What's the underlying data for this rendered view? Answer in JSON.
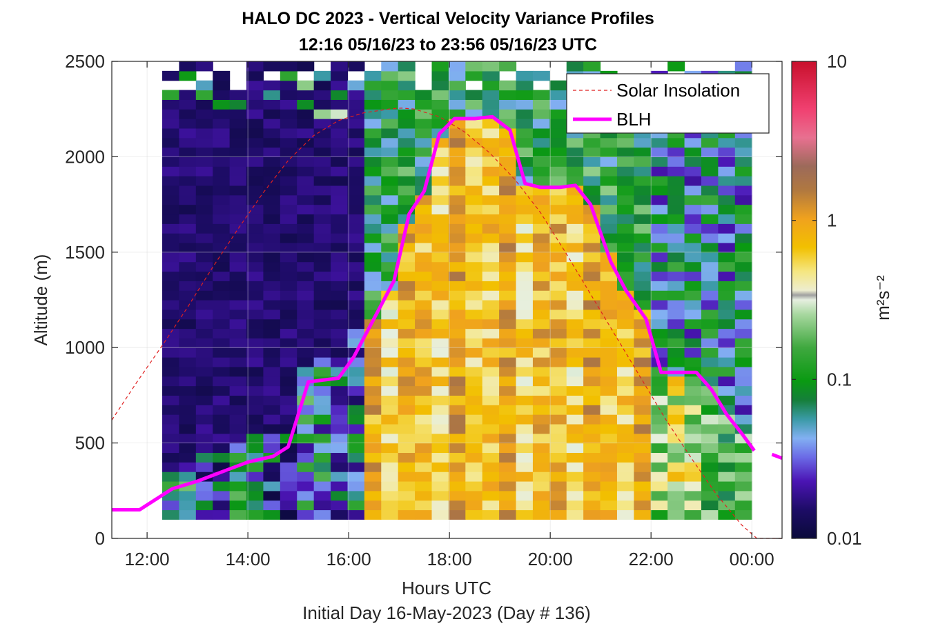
{
  "chart_data": {
    "type": "heatmap",
    "title": "HALO DC 2023 - Vertical Velocity Variance Profiles",
    "subtitle": "12:16 05/16/23 to 23:56 05/16/23  UTC",
    "xlabel": "Hours UTC",
    "ylabel": "Altitude (m)",
    "footer": "Initial Day 16-May-2023 (Day # 136)",
    "xlim": [
      11.3,
      24.6
    ],
    "ylim": [
      0,
      2500
    ],
    "x_ticks": [
      12,
      14,
      16,
      18,
      20,
      22,
      24
    ],
    "x_tick_labels": [
      "12:00",
      "14:00",
      "16:00",
      "18:00",
      "20:00",
      "22:00",
      "00:00"
    ],
    "y_ticks": [
      0,
      500,
      1000,
      1500,
      2000,
      2500
    ],
    "y_tick_labels": [
      "0",
      "500",
      "1000",
      "1500",
      "2000",
      "2500"
    ],
    "grid": true,
    "colorbar": {
      "label": "m²s⁻²",
      "scale": "log",
      "range": [
        0.01,
        10
      ],
      "tick_values": [
        0.01,
        0.1,
        1,
        10
      ],
      "tick_labels": [
        "0.01",
        "0.1",
        "1",
        "10"
      ]
    },
    "legend": {
      "placement": "top-right",
      "entries": [
        {
          "label": "Solar Insolation",
          "color": "#e02020",
          "style": "dashed"
        },
        {
          "label": "BLH",
          "color": "#ff00ff",
          "style": "solid"
        }
      ]
    },
    "heatmap": {
      "x_range": [
        12.3,
        24.0
      ],
      "y_range": [
        100,
        2500
      ],
      "columns": 35,
      "rows": 48,
      "values": "variance field in m^2 s^-2 (log-colored), low values (~0.01) before 16:00 and high values (~1) between 16:30 and 22:00 below the BLH"
    },
    "series": [
      {
        "name": "BLH",
        "x": [
          11.3,
          11.85,
          12.5,
          13.0,
          13.5,
          14.0,
          14.5,
          14.8,
          15.0,
          15.2,
          15.8,
          16.1,
          16.5,
          16.9,
          17.2,
          17.5,
          17.8,
          18.1,
          18.5,
          18.85,
          19.2,
          19.5,
          19.8,
          20.2,
          20.5,
          20.8,
          21.0,
          21.2,
          21.5,
          21.9,
          22.2,
          22.5,
          22.9,
          23.2,
          23.5,
          23.8,
          24.05
        ],
        "y": [
          150,
          150,
          260,
          300,
          350,
          400,
          430,
          480,
          650,
          820,
          840,
          950,
          1150,
          1350,
          1700,
          1820,
          2120,
          2200,
          2200,
          2210,
          2140,
          1860,
          1840,
          1840,
          1850,
          1750,
          1600,
          1450,
          1300,
          1150,
          870,
          870,
          870,
          780,
          650,
          550,
          460
        ]
      },
      {
        "name": "BLH",
        "x": [
          24.4,
          24.6
        ],
        "y": [
          440,
          420
        ]
      },
      {
        "name": "Solar Insolation",
        "x": [
          11.3,
          11.8,
          12.3,
          12.8,
          13.3,
          13.8,
          14.3,
          14.8,
          15.3,
          15.8,
          16.3,
          16.8,
          17.05,
          17.3,
          17.8,
          18.3,
          18.8,
          19.3,
          19.8,
          20.3,
          20.8,
          21.3,
          21.8,
          22.3,
          22.8,
          23.3,
          23.8,
          24.1,
          24.2,
          24.6
        ],
        "y": [
          620,
          820,
          1010,
          1210,
          1420,
          1620,
          1810,
          1980,
          2110,
          2190,
          2230,
          2250,
          2255,
          2250,
          2210,
          2130,
          2020,
          1880,
          1710,
          1500,
          1280,
          1060,
          840,
          620,
          420,
          230,
          70,
          0,
          0,
          0
        ]
      }
    ]
  }
}
